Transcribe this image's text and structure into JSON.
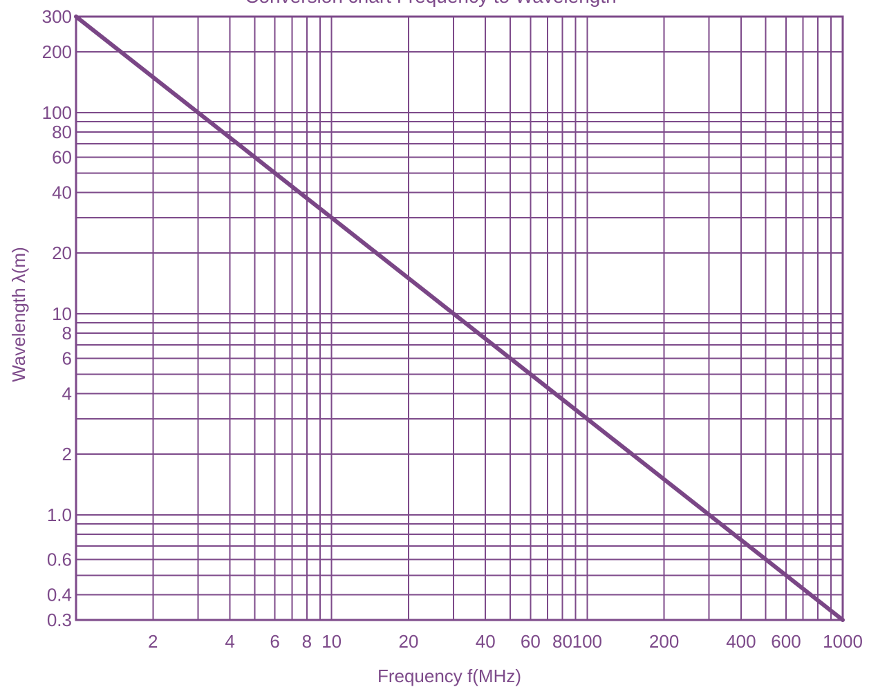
{
  "chart_data": {
    "type": "line",
    "title": "Conversion chart Frequency to Wavelength",
    "xlabel": "Frequency f(MHz)",
    "ylabel": "Wavelength λ(m)",
    "x_scale": "log",
    "y_scale": "log",
    "xlim": [
      1,
      1000
    ],
    "ylim": [
      0.3,
      300
    ],
    "grid": true,
    "x_gridlines": [
      2,
      3,
      4,
      5,
      6,
      7,
      8,
      9,
      10,
      20,
      30,
      40,
      50,
      60,
      70,
      80,
      90,
      100,
      200,
      300,
      400,
      500,
      600,
      700,
      800,
      900
    ],
    "y_gridlines": [
      0.4,
      0.5,
      0.6,
      0.7,
      0.8,
      0.9,
      1,
      2,
      3,
      4,
      5,
      6,
      7,
      8,
      9,
      10,
      20,
      30,
      40,
      50,
      60,
      70,
      80,
      90,
      100,
      200
    ],
    "x_tick_labels": [
      {
        "value": 2,
        "label": "2"
      },
      {
        "value": 4,
        "label": "4"
      },
      {
        "value": 6,
        "label": "6"
      },
      {
        "value": 8,
        "label": "8"
      },
      {
        "value": 10,
        "label": "10"
      },
      {
        "value": 20,
        "label": "20"
      },
      {
        "value": 40,
        "label": "40"
      },
      {
        "value": 60,
        "label": "60"
      },
      {
        "value": 80,
        "label": "80"
      },
      {
        "value": 100,
        "label": "100"
      },
      {
        "value": 200,
        "label": "200"
      },
      {
        "value": 400,
        "label": "400"
      },
      {
        "value": 600,
        "label": "600"
      },
      {
        "value": 1000,
        "label": "1000"
      }
    ],
    "y_tick_labels": [
      {
        "value": 300,
        "label": "300"
      },
      {
        "value": 200,
        "label": "200"
      },
      {
        "value": 100,
        "label": "100"
      },
      {
        "value": 80,
        "label": "80"
      },
      {
        "value": 60,
        "label": "60"
      },
      {
        "value": 40,
        "label": "40"
      },
      {
        "value": 20,
        "label": "20"
      },
      {
        "value": 10,
        "label": "10"
      },
      {
        "value": 8,
        "label": "8"
      },
      {
        "value": 6,
        "label": "6"
      },
      {
        "value": 4,
        "label": "4"
      },
      {
        "value": 2,
        "label": "2"
      },
      {
        "value": 1,
        "label": "1.0"
      },
      {
        "value": 0.6,
        "label": "0.6"
      },
      {
        "value": 0.4,
        "label": "0.4"
      },
      {
        "value": 0.3,
        "label": "0.3"
      }
    ],
    "series": [
      {
        "x": [
          1,
          1000
        ],
        "y": [
          300,
          0.3
        ]
      }
    ],
    "colors": {
      "grid": "#7d4a8a",
      "line": "#7a4686",
      "text": "#7d4a8a"
    }
  }
}
